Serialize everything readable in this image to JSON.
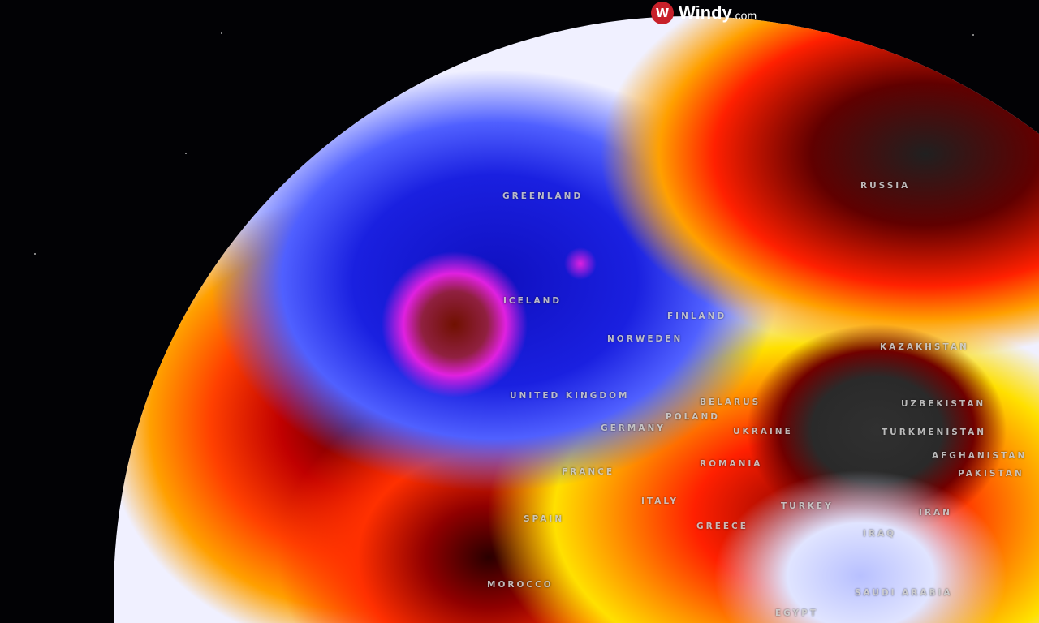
{
  "brand": {
    "icon": "windy-logo-icon",
    "name": "Windy",
    "domain": ".com",
    "color": "#c8202a"
  },
  "map": {
    "labels": [
      {
        "id": "greenland",
        "text": "GREENLAND"
      },
      {
        "id": "russia",
        "text": "RUSSIA"
      },
      {
        "id": "iceland",
        "text": "ICELAND"
      },
      {
        "id": "finland",
        "text": "FINLAND"
      },
      {
        "id": "norway-sweden",
        "text": "NORWEDEN"
      },
      {
        "id": "united-kingdom",
        "text": "UNITED KINGDOM"
      },
      {
        "id": "belarus",
        "text": "BELARUS"
      },
      {
        "id": "poland",
        "text": "POLAND"
      },
      {
        "id": "germany",
        "text": "GERMANY"
      },
      {
        "id": "ukraine",
        "text": "UKRAINE"
      },
      {
        "id": "kazakhstan",
        "text": "KAZAKHSTAN"
      },
      {
        "id": "uzbekistan",
        "text": "UZBEKISTAN"
      },
      {
        "id": "turkmenistan",
        "text": "TURKMENISTAN"
      },
      {
        "id": "afghanistan",
        "text": "AFGHANISTAN"
      },
      {
        "id": "pakistan",
        "text": "PAKISTAN"
      },
      {
        "id": "france",
        "text": "FRANCE"
      },
      {
        "id": "romania",
        "text": "ROMANIA"
      },
      {
        "id": "spain",
        "text": "SPAIN"
      },
      {
        "id": "italy",
        "text": "ITALY"
      },
      {
        "id": "greece",
        "text": "GREECE"
      },
      {
        "id": "turkey",
        "text": "TURKEY"
      },
      {
        "id": "iran",
        "text": "IRAN"
      },
      {
        "id": "iraq",
        "text": "IRAQ"
      },
      {
        "id": "morocco",
        "text": "MOROCCO"
      },
      {
        "id": "saudi-arabia",
        "text": "SAUDI ARABIA"
      },
      {
        "id": "egypt",
        "text": "EGYPT"
      }
    ],
    "colors": {
      "cold": "#1a1ad0",
      "very_cold": "#e020e0",
      "warm": "#ff3000",
      "hot": "#6a0000",
      "extreme": "#303030",
      "neutral": "#e8e8ff",
      "mild": "#ffe000"
    }
  }
}
